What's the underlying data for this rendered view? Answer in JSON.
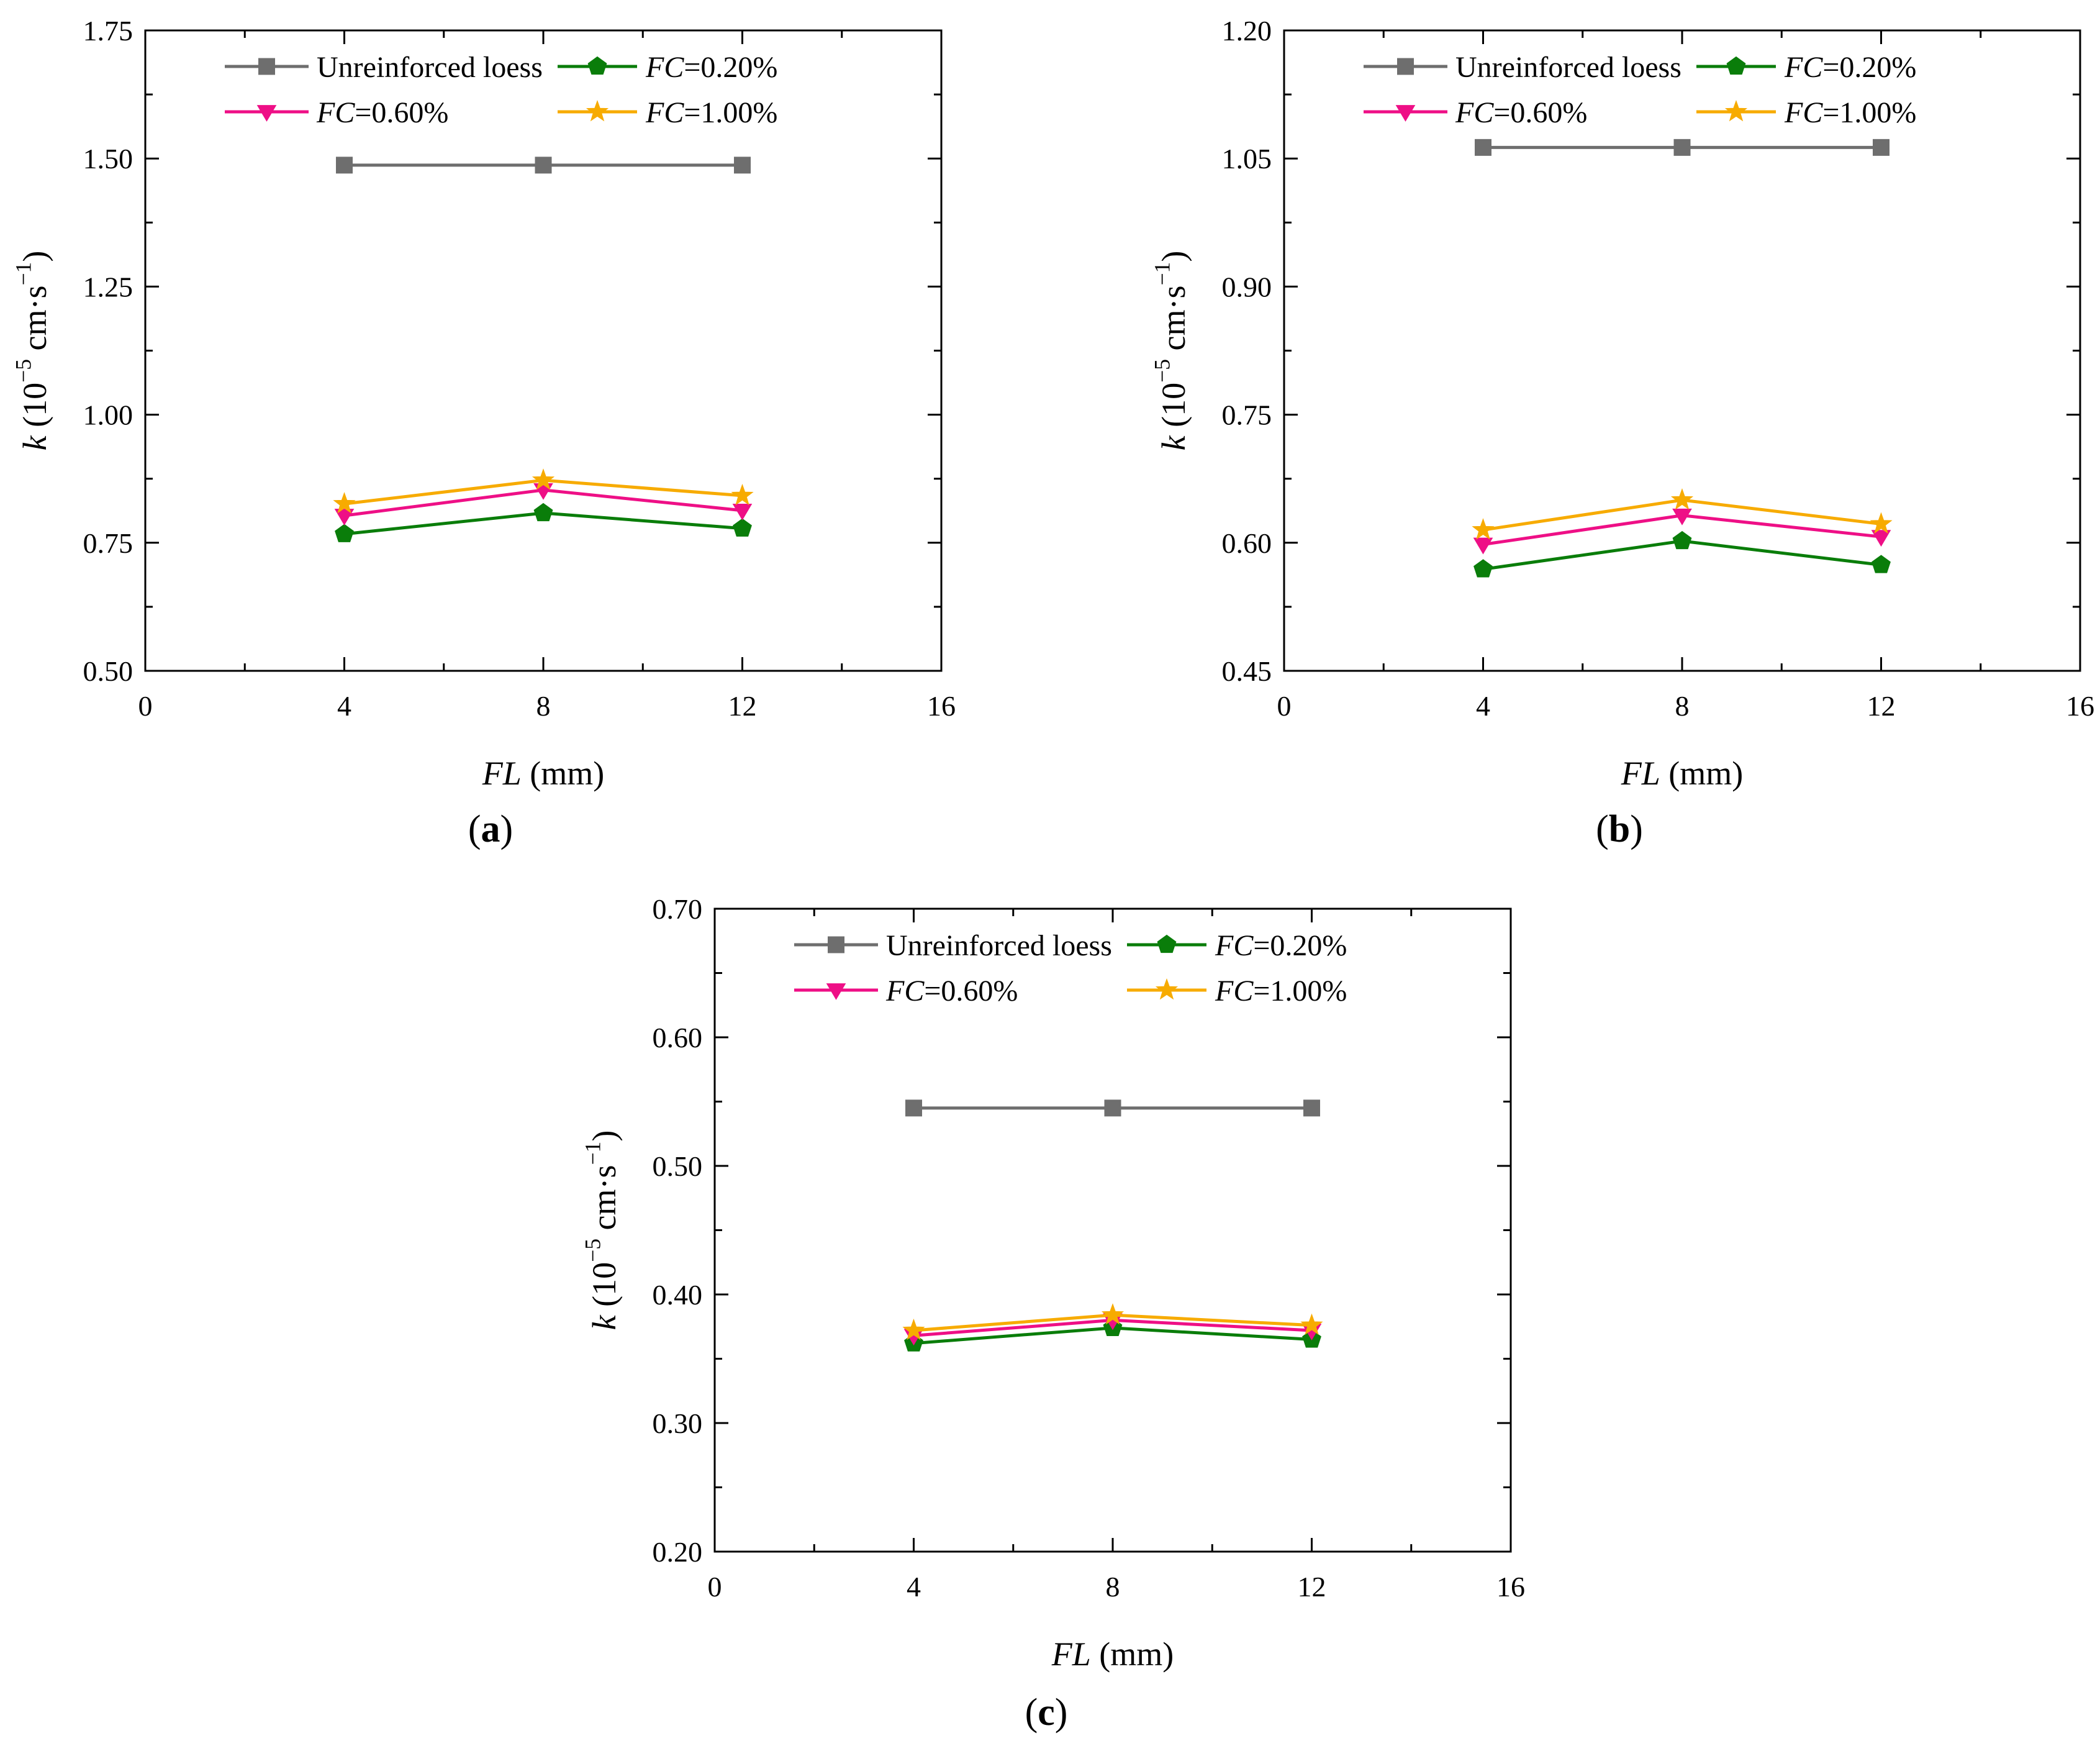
{
  "colors": {
    "Unreinforced loess": "#6e6e6e",
    "FC=0.20%": "#0a7d0a",
    "FC=0.60%": "#ee0f86",
    "FC=1.00%": "#f7ab00"
  },
  "marker_shapes": {
    "Unreinforced loess": "square",
    "FC=0.20%": "pentagon",
    "FC=0.60%": "triangle-down",
    "FC=1.00%": "star"
  },
  "chart_data": [
    {
      "type": "line",
      "panel_label": "a",
      "xlabel": "FL (mm)",
      "ylabel": "k (10−5 cm·s−1)",
      "xlim": [
        0,
        16
      ],
      "ylim": [
        0.5,
        1.75
      ],
      "xticks": [
        0,
        4,
        8,
        12,
        16
      ],
      "xtick_labels": [
        "0",
        "4",
        "8",
        "12",
        "16"
      ],
      "yticks": [
        0.5,
        0.75,
        1.0,
        1.25,
        1.5,
        1.75
      ],
      "ytick_labels": [
        "0.50",
        "0.75",
        "1.00",
        "1.25",
        "1.50",
        "1.75"
      ],
      "grid": false,
      "legend_position": "top",
      "x": [
        4,
        8,
        12
      ],
      "series": [
        {
          "name": "Unreinforced loess",
          "values": [
            1.487,
            1.487,
            1.487
          ]
        },
        {
          "name": "FC=0.20%",
          "values": [
            0.767,
            0.808,
            0.778
          ]
        },
        {
          "name": "FC=0.60%",
          "values": [
            0.803,
            0.853,
            0.813
          ]
        },
        {
          "name": "FC=1.00%",
          "values": [
            0.826,
            0.872,
            0.842
          ]
        }
      ]
    },
    {
      "type": "line",
      "panel_label": "b",
      "xlabel": "FL (mm)",
      "ylabel": "k (10−5 cm·s−1)",
      "xlim": [
        0,
        16
      ],
      "ylim": [
        0.45,
        1.2
      ],
      "xticks": [
        0,
        4,
        8,
        12,
        16
      ],
      "xtick_labels": [
        "0",
        "4",
        "8",
        "12",
        "16"
      ],
      "yticks": [
        0.45,
        0.6,
        0.75,
        0.9,
        1.05,
        1.2
      ],
      "ytick_labels": [
        "0.45",
        "0.60",
        "0.75",
        "0.90",
        "1.05",
        "1.20"
      ],
      "grid": false,
      "legend_position": "top",
      "x": [
        4,
        8,
        12
      ],
      "series": [
        {
          "name": "Unreinforced loess",
          "values": [
            1.063,
            1.063,
            1.063
          ]
        },
        {
          "name": "FC=0.20%",
          "values": [
            0.569,
            0.602,
            0.574
          ]
        },
        {
          "name": "FC=0.60%",
          "values": [
            0.598,
            0.632,
            0.607
          ]
        },
        {
          "name": "FC=1.00%",
          "values": [
            0.615,
            0.65,
            0.622
          ]
        }
      ]
    },
    {
      "type": "line",
      "panel_label": "c",
      "xlabel": "FL (mm)",
      "ylabel": "k (10−5 cm·s−1)",
      "xlim": [
        0,
        16
      ],
      "ylim": [
        0.2,
        0.7
      ],
      "xticks": [
        0,
        4,
        8,
        12,
        16
      ],
      "xtick_labels": [
        "0",
        "4",
        "8",
        "12",
        "16"
      ],
      "yticks": [
        0.2,
        0.3,
        0.4,
        0.5,
        0.6,
        0.7
      ],
      "ytick_labels": [
        "0.20",
        "0.30",
        "0.40",
        "0.50",
        "0.60",
        "0.70"
      ],
      "grid": false,
      "legend_position": "top",
      "x": [
        4,
        8,
        12
      ],
      "series": [
        {
          "name": "Unreinforced loess",
          "values": [
            0.545,
            0.545,
            0.545
          ]
        },
        {
          "name": "FC=0.20%",
          "values": [
            0.362,
            0.374,
            0.365
          ]
        },
        {
          "name": "FC=0.60%",
          "values": [
            0.368,
            0.38,
            0.372
          ]
        },
        {
          "name": "FC=1.00%",
          "values": [
            0.372,
            0.384,
            0.376
          ]
        }
      ]
    }
  ]
}
